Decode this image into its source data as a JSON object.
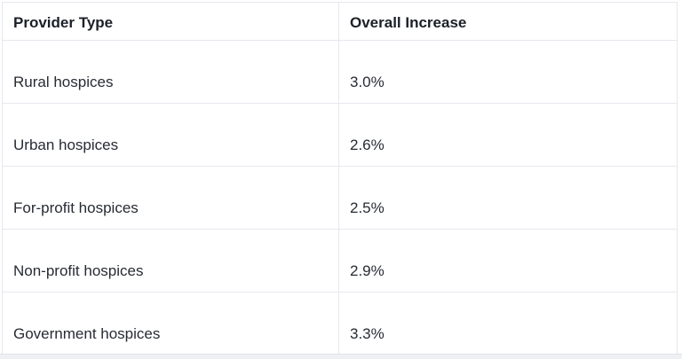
{
  "table": {
    "columns": [
      "Provider Type",
      "Overall Increase"
    ],
    "rows": [
      {
        "provider": "Rural hospices",
        "increase": "3.0%"
      },
      {
        "provider": "Urban hospices",
        "increase": "2.6%"
      },
      {
        "provider": "For-profit hospices",
        "increase": "2.5%"
      },
      {
        "provider": "Non-profit hospices",
        "increase": "2.9%"
      },
      {
        "provider": "Government hospices",
        "increase": "3.3%"
      }
    ]
  },
  "chart_data": {
    "type": "table",
    "title": "",
    "columns": [
      "Provider Type",
      "Overall Increase"
    ],
    "rows": [
      [
        "Rural hospices",
        "3.0%"
      ],
      [
        "Urban hospices",
        "2.6%"
      ],
      [
        "For-profit hospices",
        "2.5%"
      ],
      [
        "Non-profit hospices",
        "2.9%"
      ],
      [
        "Government hospices",
        "3.3%"
      ]
    ],
    "categories": [
      "Rural hospices",
      "Urban hospices",
      "For-profit hospices",
      "Non-profit hospices",
      "Government hospices"
    ],
    "values_percent": [
      3.0,
      2.6,
      2.5,
      2.9,
      3.3
    ]
  },
  "colors": {
    "table_border": "#e7e8ee",
    "header_text": "#1b2028",
    "body_text": "#272b33",
    "page_background": "#ffffff",
    "bottom_strip_background": "#eef0f3"
  }
}
